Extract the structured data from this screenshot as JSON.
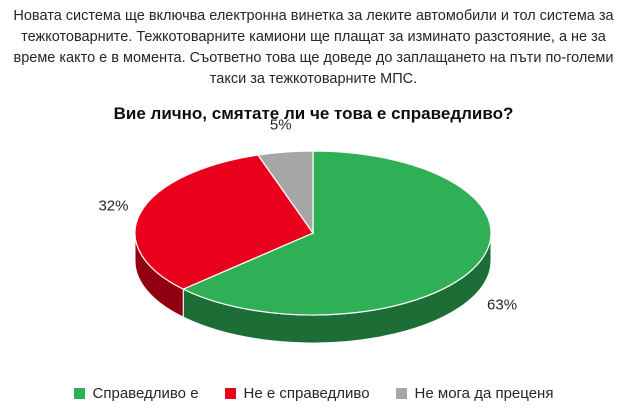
{
  "chart_data": {
    "type": "pie",
    "intro": "Новата система ще включва електронна винетка за леките автомобили и тол система за тежкотоварните. Тежкотоварните камиони ще плащат за изминато разстояние, а не за време както е в момента. Съответно това ще доведе до заплащането на пъти по-големи такси за тежкотоварните МПС.",
    "title": "Вие лично, смятате ли че това е справедливо?",
    "categories": [
      "Справедливо е",
      "Не е справедливо",
      "Не мога да преценя"
    ],
    "values": [
      63,
      32,
      5
    ],
    "data_labels": [
      "63%",
      "32%",
      "5%"
    ],
    "colors": [
      "#2fb057",
      "#e8001c",
      "#a6a6a6"
    ],
    "legend_position": "bottom",
    "three_d": true
  }
}
